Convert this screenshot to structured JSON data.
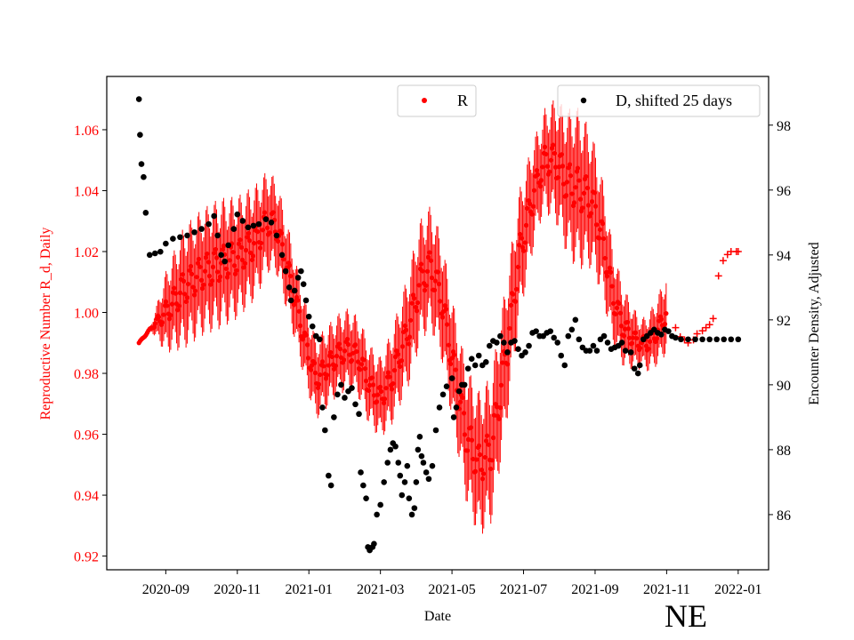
{
  "chart_data": {
    "type": "scatter",
    "xlabel": "Date",
    "ylabel_left": "Reproductive Number R_d, Daily",
    "ylabel_right": "Encounter Density, Adjusted",
    "region_label": "NE",
    "x_ticks": [
      "2020-09",
      "2020-11",
      "2021-01",
      "2021-03",
      "2021-05",
      "2021-07",
      "2021-09",
      "2021-11",
      "2022-01"
    ],
    "x_tick_months": [
      8,
      10,
      12,
      14,
      16,
      18,
      20,
      22,
      24
    ],
    "x_range_months": [
      6.35,
      24.85
    ],
    "y_left_ticks": [
      "0.92",
      "0.94",
      "0.96",
      "0.98",
      "1.00",
      "1.02",
      "1.04",
      "1.06"
    ],
    "y_left_range": [
      0.9155,
      1.0775
    ],
    "y_right_ticks": [
      "86",
      "88",
      "90",
      "92",
      "94",
      "96",
      "98"
    ],
    "y_right_range": [
      84.3,
      99.5
    ],
    "colors": {
      "R": "#ff0000",
      "D": "#000000",
      "left_axis": "#ff0000",
      "right_axis": "#000000"
    },
    "legends": [
      {
        "label": "R",
        "color": "#ff0000",
        "loc": "upper-center"
      },
      {
        "label": "D, shifted 25 days",
        "color": "#000000",
        "loc": "upper-right"
      }
    ],
    "series_R": {
      "name": "R",
      "x_start": "2020-08-08",
      "x_end": "2021-11-01",
      "center_keypoints_month_value": [
        [
          7.25,
          0.99
        ],
        [
          7.6,
          0.995
        ],
        [
          8.0,
          1.0
        ],
        [
          8.5,
          1.008
        ],
        [
          9.0,
          1.013
        ],
        [
          9.5,
          1.016
        ],
        [
          10.0,
          1.018
        ],
        [
          10.5,
          1.023
        ],
        [
          10.85,
          1.03
        ],
        [
          11.1,
          1.028
        ],
        [
          11.5,
          1.01
        ],
        [
          11.9,
          0.99
        ],
        [
          12.2,
          0.978
        ],
        [
          12.5,
          0.982
        ],
        [
          12.8,
          0.986
        ],
        [
          13.1,
          0.988
        ],
        [
          13.4,
          0.985
        ],
        [
          13.7,
          0.976
        ],
        [
          14.0,
          0.972
        ],
        [
          14.3,
          0.978
        ],
        [
          14.8,
          0.995
        ],
        [
          15.1,
          1.01
        ],
        [
          15.4,
          1.015
        ],
        [
          15.7,
          1.005
        ],
        [
          16.0,
          0.985
        ],
        [
          16.4,
          0.96
        ],
        [
          16.75,
          0.95
        ],
        [
          17.1,
          0.955
        ],
        [
          17.5,
          0.985
        ],
        [
          17.9,
          1.02
        ],
        [
          18.3,
          1.04
        ],
        [
          18.6,
          1.05
        ],
        [
          18.9,
          1.05
        ],
        [
          19.2,
          1.043
        ],
        [
          19.6,
          1.04
        ],
        [
          19.9,
          1.037
        ],
        [
          20.2,
          1.025
        ],
        [
          20.5,
          1.005
        ],
        [
          20.8,
          0.995
        ],
        [
          21.2,
          0.99
        ],
        [
          21.5,
          0.99
        ],
        [
          21.8,
          0.995
        ],
        [
          22.0,
          1.0
        ]
      ],
      "error_half_width_keypoints": [
        [
          7.25,
          0.0005
        ],
        [
          7.6,
          0.001
        ],
        [
          8.0,
          0.01
        ],
        [
          8.5,
          0.015
        ],
        [
          9.5,
          0.016
        ],
        [
          10.5,
          0.014
        ],
        [
          11.0,
          0.012
        ],
        [
          11.8,
          0.01
        ],
        [
          12.5,
          0.01
        ],
        [
          14.0,
          0.01
        ],
        [
          15.0,
          0.015
        ],
        [
          16.0,
          0.015
        ],
        [
          16.75,
          0.018
        ],
        [
          17.5,
          0.018
        ],
        [
          18.5,
          0.012
        ],
        [
          19.5,
          0.02
        ],
        [
          20.5,
          0.012
        ],
        [
          21.3,
          0.006
        ],
        [
          22.0,
          0.01
        ]
      ],
      "tail_points_month_value": [
        [
          22.25,
          0.995
        ],
        [
          22.38,
          0.992
        ],
        [
          22.5,
          0.991
        ],
        [
          22.6,
          0.99
        ],
        [
          22.75,
          0.991
        ],
        [
          22.85,
          0.993
        ],
        [
          23.0,
          0.994
        ],
        [
          23.1,
          0.995
        ],
        [
          23.2,
          0.996
        ],
        [
          23.3,
          0.998
        ],
        [
          23.45,
          1.012
        ],
        [
          23.58,
          1.017
        ],
        [
          23.7,
          1.019
        ],
        [
          23.8,
          1.02
        ],
        [
          23.95,
          1.02
        ],
        [
          24.0,
          1.02
        ]
      ]
    },
    "series_D": {
      "name": "D, shifted 25 days",
      "points_month_value": [
        [
          7.25,
          98.8
        ],
        [
          7.28,
          97.7
        ],
        [
          7.32,
          96.8
        ],
        [
          7.38,
          96.4
        ],
        [
          7.44,
          95.3
        ],
        [
          7.55,
          94.0
        ],
        [
          7.7,
          94.05
        ],
        [
          7.85,
          94.1
        ],
        [
          8.0,
          94.35
        ],
        [
          8.2,
          94.5
        ],
        [
          8.4,
          94.55
        ],
        [
          8.6,
          94.6
        ],
        [
          8.8,
          94.7
        ],
        [
          9.0,
          94.8
        ],
        [
          9.2,
          94.95
        ],
        [
          9.35,
          95.2
        ],
        [
          9.45,
          94.6
        ],
        [
          9.55,
          94.0
        ],
        [
          9.65,
          93.8
        ],
        [
          9.75,
          94.3
        ],
        [
          9.9,
          94.8
        ],
        [
          10.0,
          95.25
        ],
        [
          10.15,
          95.05
        ],
        [
          10.3,
          94.85
        ],
        [
          10.45,
          94.9
        ],
        [
          10.6,
          94.95
        ],
        [
          10.8,
          95.1
        ],
        [
          10.95,
          95.0
        ],
        [
          11.1,
          94.6
        ],
        [
          11.25,
          94.0
        ],
        [
          11.35,
          93.5
        ],
        [
          11.45,
          93.0
        ],
        [
          11.5,
          92.6
        ],
        [
          11.6,
          92.9
        ],
        [
          11.7,
          93.3
        ],
        [
          11.78,
          93.5
        ],
        [
          11.85,
          93.1
        ],
        [
          11.92,
          92.6
        ],
        [
          12.0,
          92.1
        ],
        [
          12.1,
          91.8
        ],
        [
          12.2,
          91.5
        ],
        [
          12.3,
          91.4
        ],
        [
          12.38,
          89.3
        ],
        [
          12.45,
          88.6
        ],
        [
          12.55,
          87.2
        ],
        [
          12.62,
          86.9
        ],
        [
          12.7,
          89.0
        ],
        [
          12.8,
          89.7
        ],
        [
          12.9,
          90.0
        ],
        [
          13.0,
          89.6
        ],
        [
          13.1,
          89.8
        ],
        [
          13.2,
          89.9
        ],
        [
          13.3,
          89.4
        ],
        [
          13.4,
          89.1
        ],
        [
          13.45,
          87.3
        ],
        [
          13.52,
          86.9
        ],
        [
          13.6,
          86.5
        ],
        [
          13.65,
          85.0
        ],
        [
          13.7,
          84.9
        ],
        [
          13.78,
          85.0
        ],
        [
          13.82,
          85.1
        ],
        [
          13.9,
          86.0
        ],
        [
          14.0,
          86.3
        ],
        [
          14.1,
          87.0
        ],
        [
          14.2,
          87.6
        ],
        [
          14.28,
          88.0
        ],
        [
          14.35,
          88.2
        ],
        [
          14.42,
          88.1
        ],
        [
          14.5,
          87.6
        ],
        [
          14.55,
          87.2
        ],
        [
          14.6,
          86.6
        ],
        [
          14.68,
          87.0
        ],
        [
          14.75,
          87.5
        ],
        [
          14.8,
          86.5
        ],
        [
          14.88,
          86.0
        ],
        [
          14.95,
          86.2
        ],
        [
          15.0,
          87.0
        ],
        [
          15.05,
          88.0
        ],
        [
          15.1,
          88.4
        ],
        [
          15.15,
          87.8
        ],
        [
          15.2,
          87.6
        ],
        [
          15.28,
          87.3
        ],
        [
          15.35,
          87.1
        ],
        [
          15.45,
          87.5
        ],
        [
          15.55,
          88.6
        ],
        [
          15.65,
          89.3
        ],
        [
          15.75,
          89.7
        ],
        [
          15.85,
          89.95
        ],
        [
          16.0,
          90.2
        ],
        [
          16.05,
          89.0
        ],
        [
          16.12,
          89.3
        ],
        [
          16.2,
          89.8
        ],
        [
          16.28,
          90.0
        ],
        [
          16.35,
          90.0
        ],
        [
          16.45,
          90.5
        ],
        [
          16.55,
          90.8
        ],
        [
          16.65,
          90.6
        ],
        [
          16.75,
          90.9
        ],
        [
          16.85,
          90.6
        ],
        [
          16.95,
          90.7
        ],
        [
          17.05,
          91.2
        ],
        [
          17.15,
          91.35
        ],
        [
          17.25,
          91.3
        ],
        [
          17.35,
          91.5
        ],
        [
          17.45,
          91.3
        ],
        [
          17.55,
          91.0
        ],
        [
          17.65,
          91.3
        ],
        [
          17.75,
          91.35
        ],
        [
          17.85,
          91.1
        ],
        [
          17.95,
          90.9
        ],
        [
          18.05,
          91.0
        ],
        [
          18.15,
          91.2
        ],
        [
          18.25,
          91.6
        ],
        [
          18.35,
          91.65
        ],
        [
          18.45,
          91.5
        ],
        [
          18.55,
          91.5
        ],
        [
          18.65,
          91.6
        ],
        [
          18.75,
          91.65
        ],
        [
          18.85,
          91.45
        ],
        [
          18.95,
          91.3
        ],
        [
          19.05,
          90.9
        ],
        [
          19.15,
          90.6
        ],
        [
          19.25,
          91.5
        ],
        [
          19.35,
          91.7
        ],
        [
          19.45,
          92.0
        ],
        [
          19.55,
          91.4
        ],
        [
          19.65,
          91.15
        ],
        [
          19.75,
          91.05
        ],
        [
          19.85,
          91.05
        ],
        [
          19.95,
          91.2
        ],
        [
          20.05,
          91.05
        ],
        [
          20.15,
          91.4
        ],
        [
          20.25,
          91.5
        ],
        [
          20.35,
          91.3
        ],
        [
          20.45,
          91.1
        ],
        [
          20.55,
          91.15
        ],
        [
          20.65,
          91.2
        ],
        [
          20.75,
          91.3
        ],
        [
          20.85,
          91.05
        ],
        [
          21.0,
          91.0
        ],
        [
          21.1,
          90.5
        ],
        [
          21.2,
          90.35
        ],
        [
          21.25,
          90.6
        ],
        [
          21.35,
          91.4
        ],
        [
          21.45,
          91.5
        ],
        [
          21.55,
          91.6
        ],
        [
          21.65,
          91.7
        ],
        [
          21.75,
          91.6
        ],
        [
          21.85,
          91.55
        ],
        [
          21.95,
          91.7
        ],
        [
          22.05,
          91.65
        ],
        [
          22.15,
          91.5
        ],
        [
          22.25,
          91.45
        ],
        [
          22.4,
          91.4
        ],
        [
          22.6,
          91.4
        ],
        [
          22.8,
          91.4
        ],
        [
          23.0,
          91.4
        ],
        [
          23.2,
          91.4
        ],
        [
          23.4,
          91.4
        ],
        [
          23.6,
          91.4
        ],
        [
          23.8,
          91.4
        ],
        [
          24.0,
          91.4
        ]
      ]
    }
  }
}
